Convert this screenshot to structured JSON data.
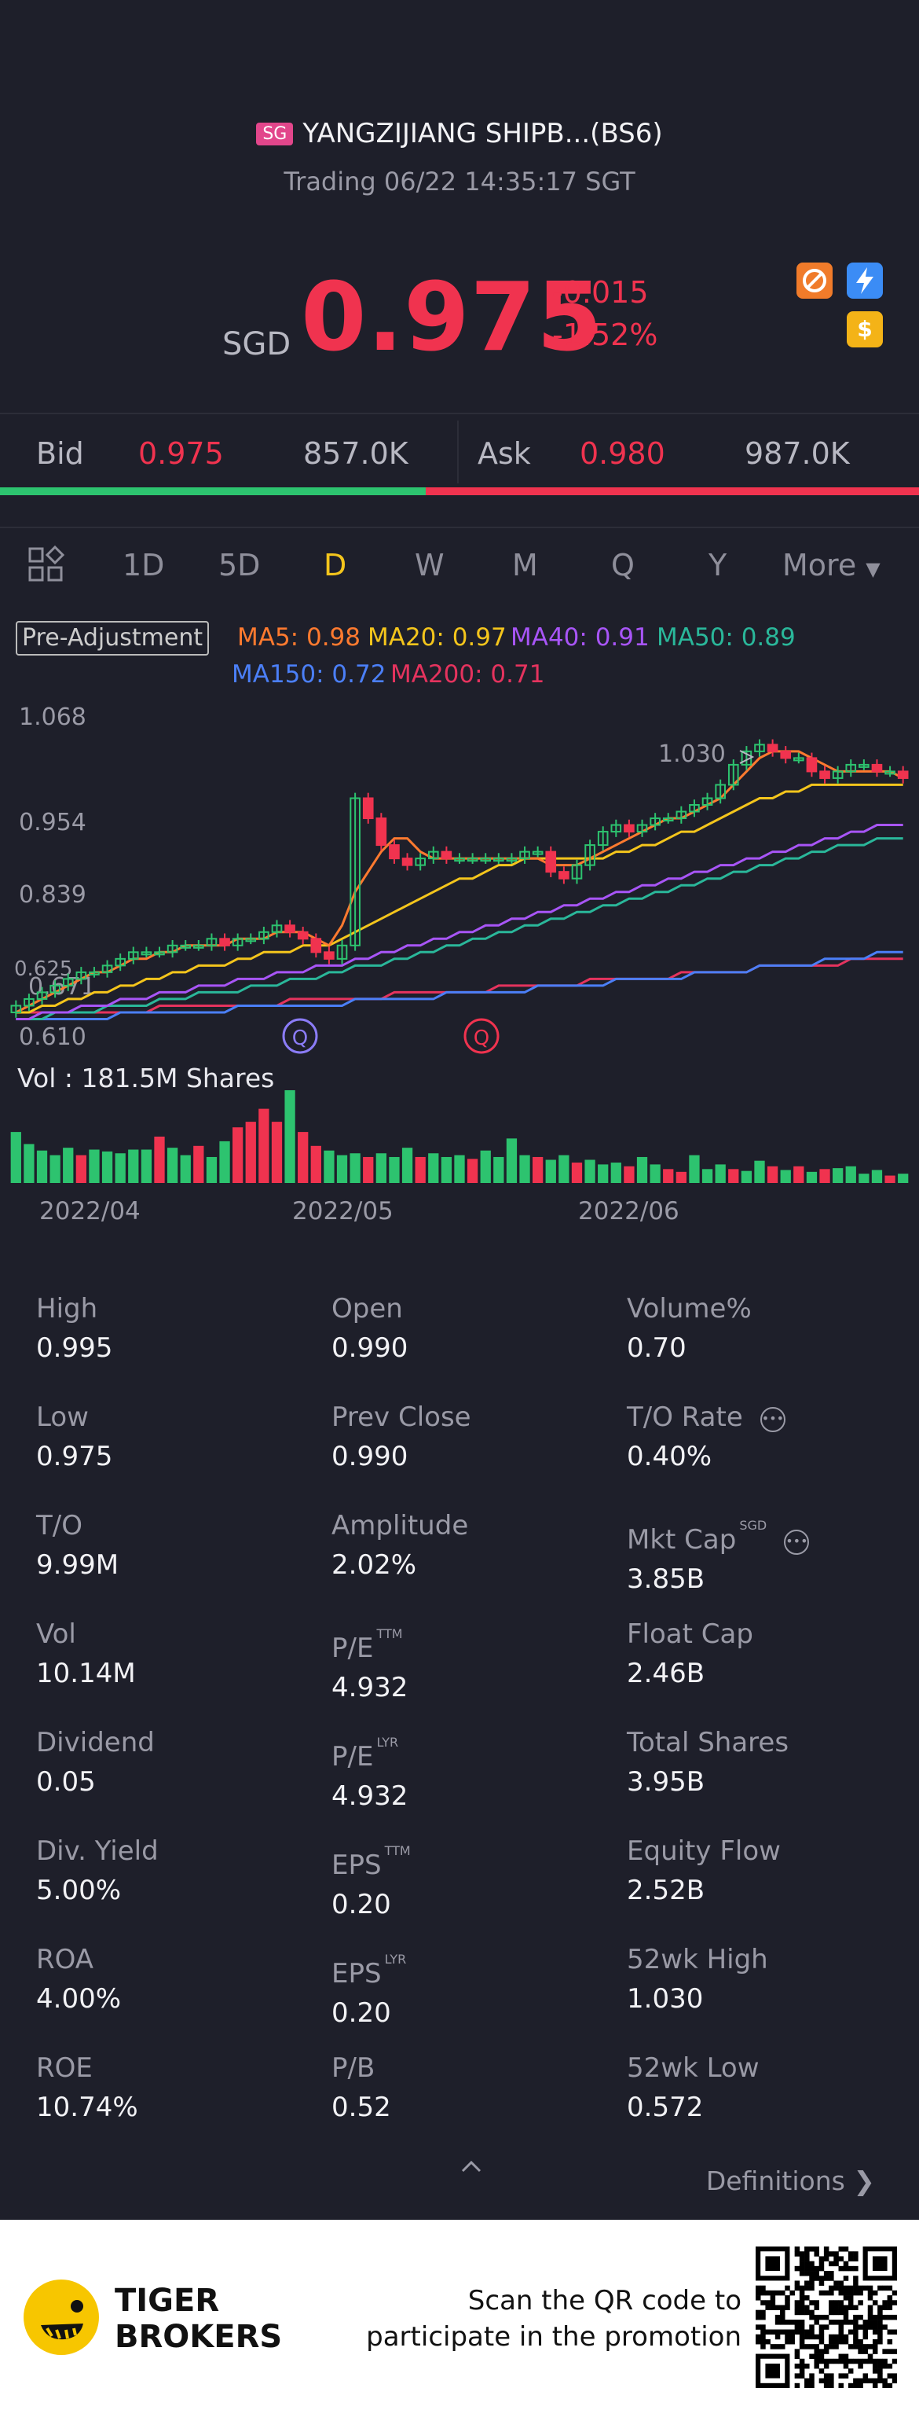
{
  "header": {
    "market_badge": "SG",
    "name": "YANGZIJIANG SHIPB...(BS6)",
    "status": "Trading 06/22 14:35:17 SGT",
    "currency": "SGD",
    "price": "0.975",
    "change": "-0.015",
    "change_pct": "-1.52%",
    "icons": [
      "no-short-icon",
      "lightning-icon",
      "dollar-icon"
    ]
  },
  "bid_ask": {
    "bid_label": "Bid",
    "bid_price": "0.975",
    "bid_size": "857.0K",
    "ask_label": "Ask",
    "ask_price": "0.980",
    "ask_size": "987.0K",
    "bid_ratio": 0.463
  },
  "tabs": {
    "items": [
      "1D",
      "5D",
      "D",
      "W",
      "M",
      "Q",
      "Y",
      "More"
    ],
    "active": "D"
  },
  "chart_labels": {
    "pre_adjustment": "Pre-Adjustment",
    "ma5": "MA5: 0.98",
    "ma20": "MA20: 0.97",
    "ma40": "MA40: 0.91",
    "ma50": "MA50: 0.89",
    "ma150": "MA150: 0.72",
    "ma200": "MA200: 0.71",
    "high_marker": "1.030",
    "low_marker": "0.625",
    "marker_q": "Q",
    "vol_label": "Vol : 181.5M Shares"
  },
  "chart_data": {
    "type": "candlestick",
    "y_ticks": [
      "1.068",
      "0.954",
      "0.839",
      "0.671",
      "0.610"
    ],
    "x_ticks": [
      "2022/04",
      "2022/05",
      "2022/06"
    ],
    "ylim": [
      0.61,
      1.068
    ],
    "colors": {
      "up": "#2dc36f",
      "down": "#f0334f",
      "ma5": "#ff7a2f",
      "ma20": "#f4c51c",
      "ma40": "#a855f7",
      "ma50": "#2ab79a",
      "ma150": "#4b7ff7",
      "ma200": "#e5335e"
    },
    "close": [
      0.64,
      0.65,
      0.66,
      0.67,
      0.68,
      0.69,
      0.69,
      0.7,
      0.71,
      0.72,
      0.72,
      0.72,
      0.73,
      0.73,
      0.73,
      0.74,
      0.73,
      0.74,
      0.74,
      0.75,
      0.76,
      0.75,
      0.74,
      0.72,
      0.71,
      0.73,
      0.95,
      0.92,
      0.88,
      0.86,
      0.85,
      0.86,
      0.87,
      0.86,
      0.86,
      0.86,
      0.86,
      0.86,
      0.86,
      0.87,
      0.87,
      0.84,
      0.83,
      0.85,
      0.88,
      0.9,
      0.91,
      0.9,
      0.91,
      0.92,
      0.92,
      0.93,
      0.94,
      0.95,
      0.97,
      1.0,
      1.02,
      1.03,
      1.02,
      1.01,
      1.01,
      0.99,
      0.98,
      0.99,
      1.0,
      1.0,
      0.99,
      0.99,
      0.98
    ],
    "ma5": [
      0.63,
      0.64,
      0.65,
      0.66,
      0.67,
      0.68,
      0.69,
      0.69,
      0.7,
      0.71,
      0.71,
      0.72,
      0.72,
      0.73,
      0.73,
      0.73,
      0.73,
      0.74,
      0.74,
      0.74,
      0.75,
      0.75,
      0.75,
      0.74,
      0.73,
      0.76,
      0.81,
      0.84,
      0.87,
      0.89,
      0.89,
      0.87,
      0.86,
      0.86,
      0.86,
      0.86,
      0.86,
      0.86,
      0.86,
      0.86,
      0.86,
      0.85,
      0.85,
      0.85,
      0.86,
      0.87,
      0.88,
      0.89,
      0.9,
      0.91,
      0.92,
      0.92,
      0.93,
      0.94,
      0.95,
      0.97,
      0.99,
      1.01,
      1.02,
      1.02,
      1.02,
      1.01,
      1.0,
      0.99,
      0.99,
      0.99,
      0.99,
      0.99,
      0.98
    ],
    "ma20": [
      0.63,
      0.63,
      0.64,
      0.64,
      0.65,
      0.65,
      0.66,
      0.66,
      0.67,
      0.67,
      0.68,
      0.68,
      0.69,
      0.69,
      0.7,
      0.7,
      0.7,
      0.71,
      0.71,
      0.72,
      0.72,
      0.72,
      0.73,
      0.73,
      0.73,
      0.74,
      0.75,
      0.76,
      0.77,
      0.78,
      0.79,
      0.8,
      0.81,
      0.82,
      0.83,
      0.83,
      0.84,
      0.85,
      0.85,
      0.86,
      0.86,
      0.86,
      0.86,
      0.86,
      0.86,
      0.86,
      0.87,
      0.87,
      0.88,
      0.88,
      0.89,
      0.9,
      0.9,
      0.91,
      0.92,
      0.93,
      0.94,
      0.95,
      0.95,
      0.96,
      0.96,
      0.97,
      0.97,
      0.97,
      0.97,
      0.97,
      0.97,
      0.97,
      0.97
    ],
    "ma40": [
      0.62,
      0.62,
      0.63,
      0.63,
      0.63,
      0.64,
      0.64,
      0.64,
      0.65,
      0.65,
      0.65,
      0.66,
      0.66,
      0.66,
      0.67,
      0.67,
      0.67,
      0.68,
      0.68,
      0.68,
      0.69,
      0.69,
      0.69,
      0.7,
      0.7,
      0.7,
      0.71,
      0.71,
      0.72,
      0.72,
      0.73,
      0.73,
      0.74,
      0.74,
      0.75,
      0.75,
      0.76,
      0.76,
      0.77,
      0.77,
      0.78,
      0.78,
      0.79,
      0.79,
      0.8,
      0.8,
      0.81,
      0.81,
      0.82,
      0.82,
      0.83,
      0.83,
      0.84,
      0.84,
      0.85,
      0.85,
      0.86,
      0.86,
      0.87,
      0.87,
      0.88,
      0.88,
      0.89,
      0.89,
      0.9,
      0.9,
      0.91,
      0.91,
      0.91
    ],
    "ma50": [
      0.62,
      0.62,
      0.62,
      0.63,
      0.63,
      0.63,
      0.63,
      0.64,
      0.64,
      0.64,
      0.64,
      0.65,
      0.65,
      0.65,
      0.66,
      0.66,
      0.66,
      0.66,
      0.67,
      0.67,
      0.67,
      0.68,
      0.68,
      0.68,
      0.69,
      0.69,
      0.7,
      0.7,
      0.7,
      0.71,
      0.71,
      0.72,
      0.72,
      0.73,
      0.73,
      0.74,
      0.74,
      0.75,
      0.75,
      0.76,
      0.76,
      0.77,
      0.77,
      0.78,
      0.78,
      0.79,
      0.79,
      0.8,
      0.8,
      0.81,
      0.81,
      0.82,
      0.82,
      0.83,
      0.83,
      0.84,
      0.84,
      0.85,
      0.85,
      0.86,
      0.86,
      0.87,
      0.87,
      0.88,
      0.88,
      0.88,
      0.89,
      0.89,
      0.89
    ],
    "ma150": [
      0.62,
      0.62,
      0.62,
      0.62,
      0.62,
      0.62,
      0.62,
      0.62,
      0.63,
      0.63,
      0.63,
      0.63,
      0.63,
      0.63,
      0.63,
      0.63,
      0.63,
      0.64,
      0.64,
      0.64,
      0.64,
      0.64,
      0.64,
      0.64,
      0.64,
      0.64,
      0.65,
      0.65,
      0.65,
      0.65,
      0.65,
      0.65,
      0.65,
      0.66,
      0.66,
      0.66,
      0.66,
      0.66,
      0.66,
      0.66,
      0.67,
      0.67,
      0.67,
      0.67,
      0.67,
      0.67,
      0.68,
      0.68,
      0.68,
      0.68,
      0.68,
      0.68,
      0.69,
      0.69,
      0.69,
      0.69,
      0.69,
      0.7,
      0.7,
      0.7,
      0.7,
      0.7,
      0.71,
      0.71,
      0.71,
      0.71,
      0.72,
      0.72,
      0.72
    ],
    "ma200": [
      0.63,
      0.63,
      0.63,
      0.63,
      0.63,
      0.63,
      0.63,
      0.63,
      0.63,
      0.63,
      0.63,
      0.64,
      0.64,
      0.64,
      0.64,
      0.64,
      0.64,
      0.64,
      0.64,
      0.64,
      0.64,
      0.65,
      0.65,
      0.65,
      0.65,
      0.65,
      0.65,
      0.65,
      0.65,
      0.66,
      0.66,
      0.66,
      0.66,
      0.66,
      0.66,
      0.66,
      0.66,
      0.67,
      0.67,
      0.67,
      0.67,
      0.67,
      0.67,
      0.67,
      0.68,
      0.68,
      0.68,
      0.68,
      0.68,
      0.68,
      0.68,
      0.69,
      0.69,
      0.69,
      0.69,
      0.69,
      0.69,
      0.7,
      0.7,
      0.7,
      0.7,
      0.7,
      0.7,
      0.7,
      0.71,
      0.71,
      0.71,
      0.71,
      0.71
    ],
    "volume": [
      0.55,
      0.42,
      0.35,
      0.3,
      0.38,
      0.3,
      0.36,
      0.34,
      0.32,
      0.36,
      0.36,
      0.5,
      0.38,
      0.3,
      0.4,
      0.28,
      0.45,
      0.6,
      0.66,
      0.8,
      0.66,
      1.0,
      0.55,
      0.4,
      0.35,
      0.3,
      0.32,
      0.28,
      0.32,
      0.28,
      0.38,
      0.28,
      0.32,
      0.28,
      0.3,
      0.26,
      0.35,
      0.28,
      0.48,
      0.3,
      0.28,
      0.25,
      0.3,
      0.22,
      0.25,
      0.2,
      0.22,
      0.18,
      0.28,
      0.2,
      0.15,
      0.12,
      0.3,
      0.15,
      0.2,
      0.15,
      0.13,
      0.24,
      0.18,
      0.14,
      0.18,
      0.12,
      0.15,
      0.16,
      0.18,
      0.1,
      0.14,
      0.08,
      0.1
    ],
    "volume_up": [
      1,
      1,
      1,
      1,
      1,
      0,
      1,
      1,
      1,
      1,
      1,
      0,
      1,
      1,
      0,
      1,
      1,
      0,
      0,
      0,
      0,
      1,
      0,
      0,
      1,
      1,
      1,
      0,
      1,
      1,
      1,
      0,
      1,
      1,
      1,
      0,
      1,
      1,
      1,
      1,
      0,
      1,
      1,
      0,
      1,
      1,
      1,
      0,
      1,
      1,
      0,
      0,
      1,
      1,
      1,
      0,
      1,
      1,
      0,
      1,
      0,
      1,
      0,
      1,
      1,
      1,
      1,
      0,
      1
    ]
  },
  "stats": [
    {
      "label": "High",
      "value": "0.995",
      "sup": ""
    },
    {
      "label": "Open",
      "value": "0.990",
      "sup": ""
    },
    {
      "label": "Volume%",
      "value": "0.70",
      "sup": ""
    },
    {
      "label": "Low",
      "value": "0.975",
      "sup": ""
    },
    {
      "label": "Prev Close",
      "value": "0.990",
      "sup": ""
    },
    {
      "label": "T/O Rate",
      "value": "0.40%",
      "sup": "",
      "info": true
    },
    {
      "label": "T/O",
      "value": "9.99M",
      "sup": ""
    },
    {
      "label": "Amplitude",
      "value": "2.02%",
      "sup": ""
    },
    {
      "label": "Mkt Cap",
      "value": "3.85B",
      "sup": "SGD",
      "info": true
    },
    {
      "label": "Vol",
      "value": "10.14M",
      "sup": ""
    },
    {
      "label": "P/E",
      "value": "4.932",
      "sup": "TTM"
    },
    {
      "label": "Float Cap",
      "value": "2.46B",
      "sup": ""
    },
    {
      "label": "Dividend",
      "value": "0.05",
      "sup": ""
    },
    {
      "label": "P/E",
      "value": "4.932",
      "sup": "LYR"
    },
    {
      "label": "Total Shares",
      "value": "3.95B",
      "sup": ""
    },
    {
      "label": "Div. Yield",
      "value": "5.00%",
      "sup": ""
    },
    {
      "label": "EPS",
      "value": "0.20",
      "sup": "TTM"
    },
    {
      "label": "Equity Flow",
      "value": "2.52B",
      "sup": ""
    },
    {
      "label": "ROA",
      "value": "4.00%",
      "sup": ""
    },
    {
      "label": "EPS",
      "value": "0.20",
      "sup": "LYR"
    },
    {
      "label": "52wk High",
      "value": "1.030",
      "sup": ""
    },
    {
      "label": "ROE",
      "value": "10.74%",
      "sup": ""
    },
    {
      "label": "P/B",
      "value": "0.52",
      "sup": ""
    },
    {
      "label": "52wk Low",
      "value": "0.572",
      "sup": ""
    }
  ],
  "definitions_label": "Definitions",
  "footer": {
    "brand_line1": "TIGER",
    "brand_line2": "BROKERS",
    "promo_line1": "Scan the QR code to",
    "promo_line2": "participate in the promotion"
  }
}
